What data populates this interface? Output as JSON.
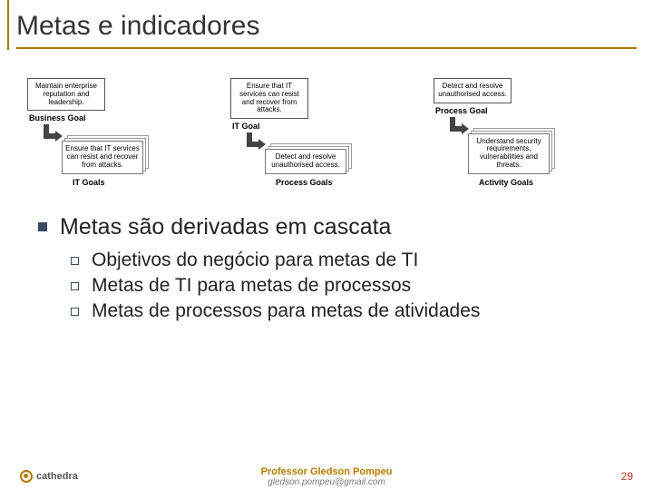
{
  "title": "Metas e indicadores",
  "diagram": {
    "groups": [
      {
        "top_box": "Maintain enterprise reputation and leadership.",
        "top_label": "Business Goal",
        "bottom_box": "Ensure that IT services can resist and recover from attacks.",
        "bottom_label": "IT Goals"
      },
      {
        "top_box": "Ensure that IT services can resist and recover from attacks.",
        "top_label": "IT Goal",
        "bottom_box": "Detect and resolve unauthorised access.",
        "bottom_label": "Process Goals"
      },
      {
        "top_box": "Detect and resolve unauthorised access.",
        "top_label": "Process Goal",
        "bottom_box": "Understand security requirements, vulnerabilities and threats.",
        "bottom_label": "Activity Goals"
      }
    ]
  },
  "main_bullet": "Metas são derivadas em cascata",
  "sub_bullets": [
    "Objetivos do negócio para metas de TI",
    "Metas de TI para metas de processos",
    "Metas de processos para metas de atividades"
  ],
  "footer": {
    "logo_text": "cathedra",
    "professor": "Professor Gledson Pompeu",
    "email": "gledson.pompeu@gmail.com",
    "page": "29"
  }
}
